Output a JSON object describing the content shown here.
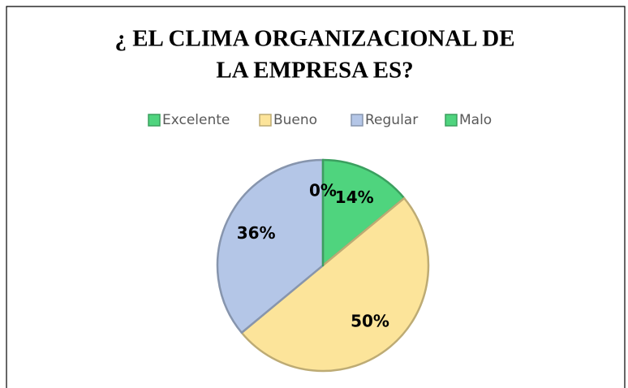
{
  "chart_data": {
    "type": "pie",
    "title": [
      "¿ EL CLIMA ORGANIZACIONAL DE",
      "LA EMPRESA ES?"
    ],
    "categories": [
      "Excelente",
      "Bueno",
      "Regular",
      "Malo"
    ],
    "values": [
      14,
      50,
      36,
      0
    ],
    "value_labels": [
      "14%",
      "50%",
      "36%",
      "0%"
    ],
    "colors": [
      "#4fd47e",
      "#fce49a",
      "#b4c6e7",
      "#4fd47e"
    ],
    "legend": "top"
  }
}
